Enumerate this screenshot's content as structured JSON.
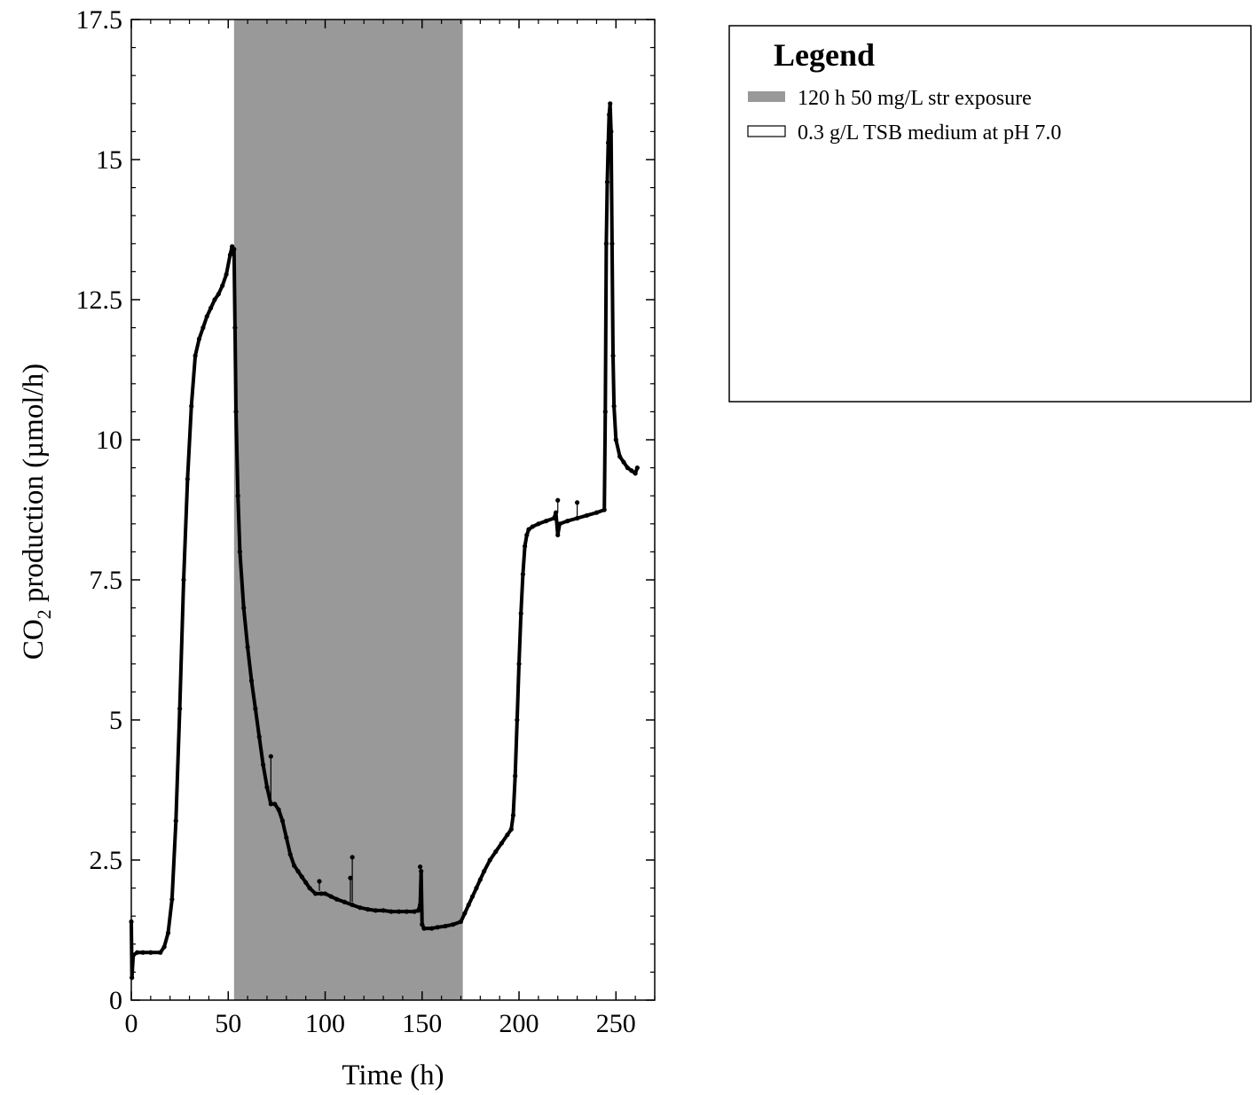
{
  "chart_data": {
    "type": "line",
    "title": "",
    "xlabel": "Time (h)",
    "ylabel_main": "CO",
    "ylabel_sub": "2",
    "ylabel_rest": " production (µmol/h)",
    "xlim": [
      0,
      270
    ],
    "ylim": [
      0,
      17.5
    ],
    "xticks": [
      0,
      50,
      100,
      150,
      200,
      250
    ],
    "xtick_labels": [
      "0",
      "50",
      "100",
      "150",
      "200",
      "250"
    ],
    "yticks": [
      0,
      2.5,
      5,
      7.5,
      10,
      12.5,
      15,
      17.5
    ],
    "ytick_labels": [
      "0",
      "2.5",
      "5",
      "7.5",
      "10",
      "12.5",
      "15",
      "17.5"
    ],
    "grid": false,
    "shaded_regions": [
      {
        "name": "120 h 50 mg/L str exposure",
        "x_start": 53,
        "x_end": 171,
        "color": "#999999"
      }
    ],
    "series": [
      {
        "name": "0.3 g/L TSB medium at pH 7.0",
        "color": "#000000",
        "x": [
          0,
          0.3,
          1,
          3,
          6,
          10,
          15,
          17,
          19,
          21,
          23,
          25,
          27,
          29,
          31,
          33,
          35,
          37,
          39,
          41,
          43,
          45,
          47,
          49,
          51,
          52,
          53,
          53.5,
          54,
          55,
          56,
          58,
          60,
          62,
          64,
          66,
          68,
          70,
          72,
          74,
          76,
          78,
          80,
          82,
          84,
          86,
          88,
          90,
          92,
          95,
          98,
          100,
          103,
          106,
          110,
          114,
          118,
          122,
          126,
          130,
          134,
          138,
          142,
          146,
          148,
          149,
          149.5,
          150,
          151,
          155,
          158,
          162,
          166,
          170,
          172,
          174,
          176,
          178,
          180,
          182,
          185,
          188,
          191,
          194,
          196,
          197,
          198,
          199,
          200,
          201,
          202,
          203,
          204,
          205,
          207,
          210,
          214,
          218,
          219,
          220,
          221,
          225,
          230,
          235,
          240,
          244,
          244.5,
          245,
          245.5,
          246,
          246.5,
          247,
          247.5,
          248,
          248.5,
          249,
          250,
          252,
          254,
          256,
          258,
          260,
          261
        ],
        "y": [
          1.4,
          0.4,
          0.8,
          0.85,
          0.85,
          0.85,
          0.85,
          0.95,
          1.2,
          1.8,
          3.2,
          5.2,
          7.5,
          9.3,
          10.6,
          11.5,
          11.8,
          12.0,
          12.2,
          12.35,
          12.5,
          12.6,
          12.75,
          12.95,
          13.3,
          13.45,
          13.4,
          12.0,
          10.5,
          9.0,
          8.0,
          7.0,
          6.3,
          5.7,
          5.2,
          4.7,
          4.2,
          3.8,
          3.5,
          3.5,
          3.4,
          3.2,
          2.9,
          2.6,
          2.4,
          2.3,
          2.2,
          2.1,
          2.0,
          1.9,
          1.9,
          1.9,
          1.85,
          1.8,
          1.75,
          1.7,
          1.65,
          1.62,
          1.6,
          1.6,
          1.58,
          1.58,
          1.58,
          1.58,
          1.6,
          1.7,
          2.3,
          1.35,
          1.28,
          1.28,
          1.3,
          1.32,
          1.35,
          1.4,
          1.55,
          1.7,
          1.85,
          2.0,
          2.15,
          2.3,
          2.5,
          2.65,
          2.8,
          2.95,
          3.05,
          3.3,
          4.0,
          5.0,
          6.0,
          6.9,
          7.6,
          8.1,
          8.3,
          8.4,
          8.45,
          8.5,
          8.55,
          8.6,
          8.7,
          8.3,
          8.5,
          8.55,
          8.6,
          8.65,
          8.7,
          8.75,
          10.5,
          13.5,
          14.6,
          15.3,
          15.8,
          16.0,
          15.5,
          13.5,
          11.5,
          10.6,
          10.0,
          9.7,
          9.6,
          9.5,
          9.45,
          9.4,
          9.5
        ]
      }
    ],
    "spikes": [
      {
        "x": 72,
        "y_base": 3.5,
        "y_top": 4.35
      },
      {
        "x": 97,
        "y_base": 1.95,
        "y_top": 2.12
      },
      {
        "x": 113,
        "y_base": 1.75,
        "y_top": 2.18
      },
      {
        "x": 114,
        "y_base": 1.75,
        "y_top": 2.55
      },
      {
        "x": 149,
        "y_base": 1.6,
        "y_top": 2.38
      },
      {
        "x": 220,
        "y_base": 8.7,
        "y_top": 8.92
      },
      {
        "x": 230,
        "y_base": 8.6,
        "y_top": 8.88
      }
    ],
    "legend_position": "right",
    "legend": {
      "title": "Legend",
      "items": [
        {
          "label": "120 h 50 mg/L str exposure",
          "swatch": "filled",
          "color": "#999999"
        },
        {
          "label": "0.3 g/L TSB medium at pH 7.0",
          "swatch": "outline",
          "color": "#000000"
        }
      ]
    }
  }
}
